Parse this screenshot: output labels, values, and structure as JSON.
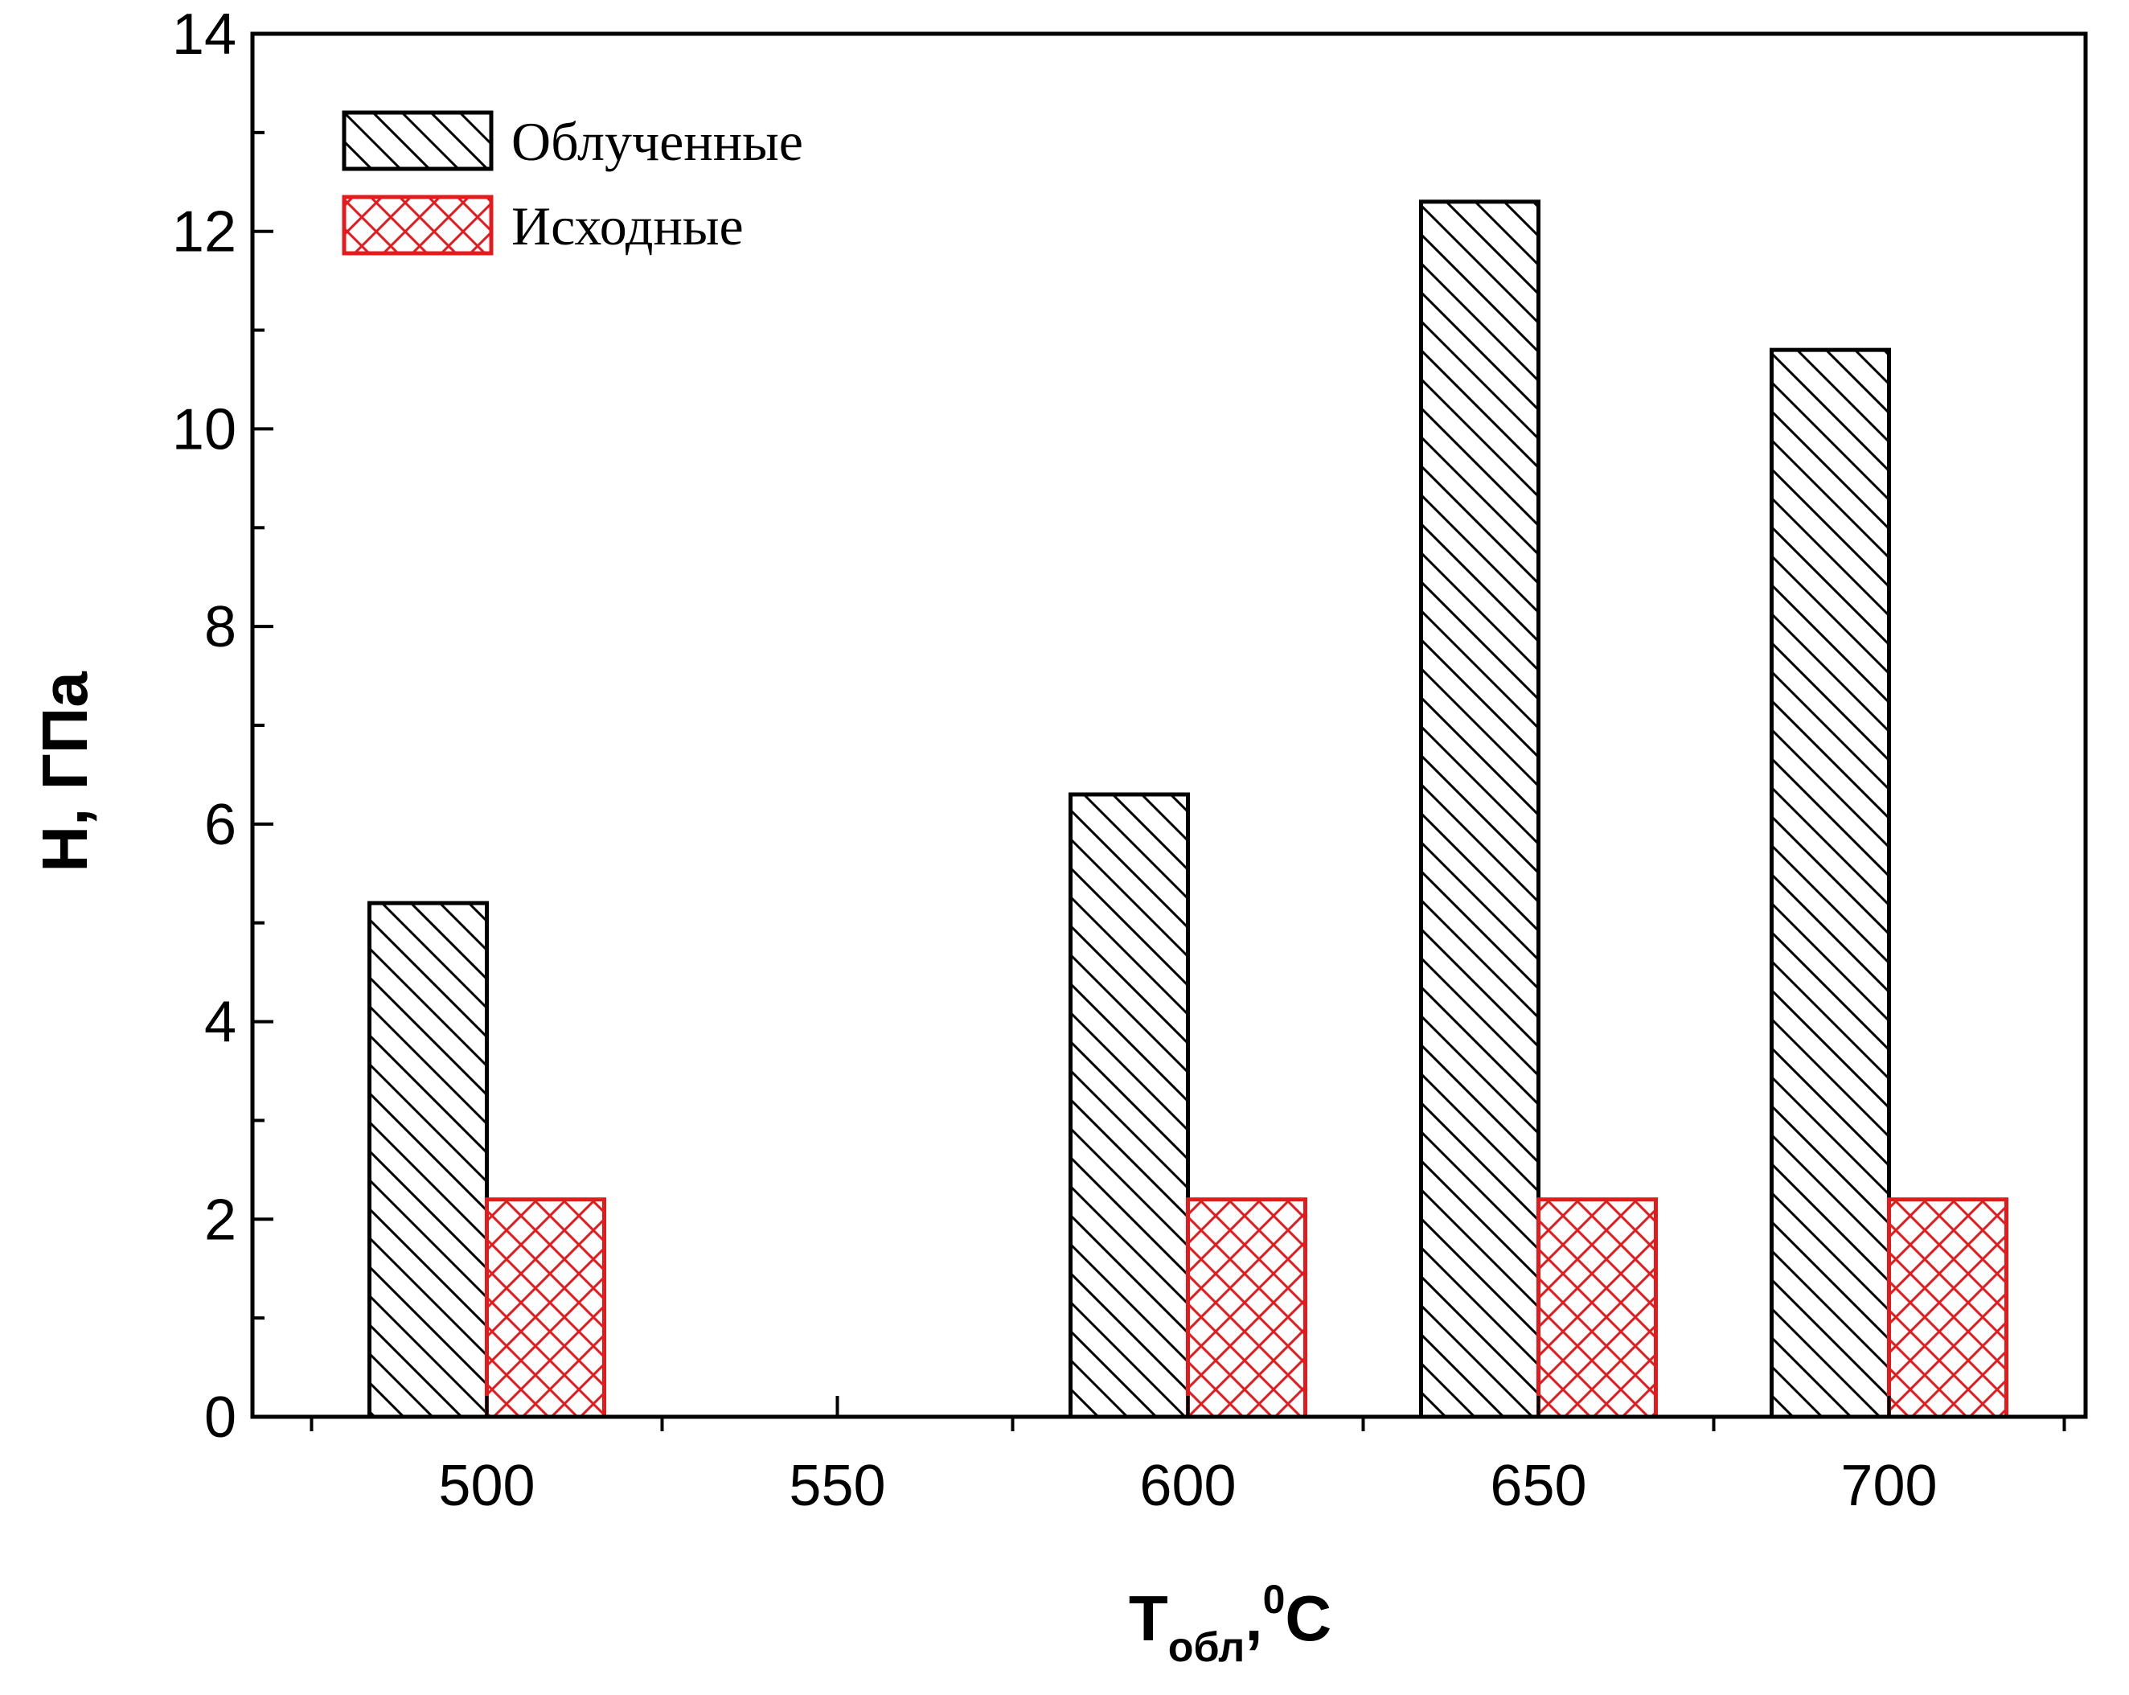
{
  "chart_data": {
    "type": "bar",
    "categories": [
      "500",
      "550",
      "600",
      "650",
      "700"
    ],
    "series": [
      {
        "name": "Облученные",
        "values": [
          5.2,
          null,
          6.3,
          12.3,
          10.8
        ],
        "color": "#000000",
        "pattern": "diagonal-hatch"
      },
      {
        "name": "Исходные",
        "values": [
          2.2,
          null,
          2.2,
          2.2,
          2.2
        ],
        "color": "#e41a1c",
        "pattern": "cross-hatch"
      }
    ],
    "xlabel": {
      "main": "T",
      "sub": "обл",
      "tail": ",",
      "sup": "0",
      "unit": "C"
    },
    "ylabel": "H, ГПа",
    "ylim": [
      0,
      14
    ],
    "yticks": [
      "0",
      "2",
      "4",
      "6",
      "8",
      "10",
      "12",
      "14"
    ],
    "legend_position": "top-left",
    "grid": false
  }
}
